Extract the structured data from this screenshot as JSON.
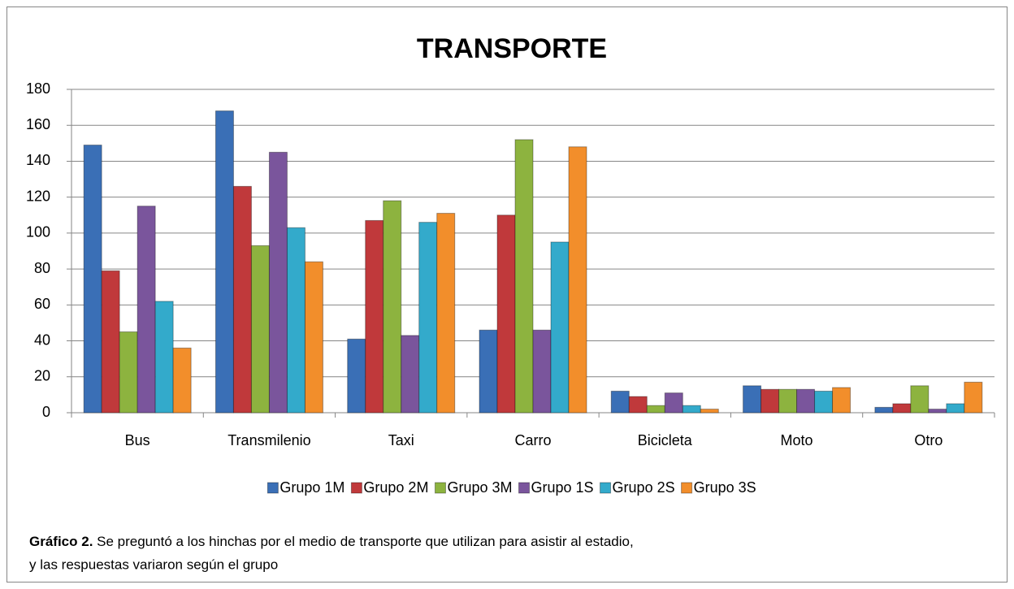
{
  "chart_data": {
    "type": "bar",
    "title": "TRANSPORTE",
    "categories": [
      "Bus",
      "Transmilenio",
      "Taxi",
      "Carro",
      "Bicicleta",
      "Moto",
      "Otro"
    ],
    "series": [
      {
        "name": "Grupo 1M",
        "color": "#3a6fb6",
        "values": [
          149,
          168,
          41,
          46,
          12,
          15,
          3
        ]
      },
      {
        "name": "Grupo 2M",
        "color": "#c0393b",
        "values": [
          79,
          126,
          107,
          110,
          9,
          13,
          5
        ]
      },
      {
        "name": "Grupo 3M",
        "color": "#8db33f",
        "values": [
          45,
          93,
          118,
          152,
          4,
          13,
          15
        ]
      },
      {
        "name": "Grupo 1S",
        "color": "#7a559c",
        "values": [
          115,
          145,
          43,
          46,
          11,
          13,
          2
        ]
      },
      {
        "name": "Grupo 2S",
        "color": "#33aacb",
        "values": [
          62,
          103,
          106,
          95,
          4,
          12,
          5
        ]
      },
      {
        "name": "Grupo 3S",
        "color": "#f28e2b",
        "values": [
          36,
          84,
          111,
          148,
          2,
          14,
          17
        ]
      }
    ],
    "ylim": [
      0,
      180
    ],
    "yticks": [
      0,
      20,
      40,
      60,
      80,
      100,
      120,
      140,
      160,
      180
    ],
    "grid": true,
    "legend": "bottom"
  },
  "caption": {
    "label": "Gráfico 2.",
    "line1": " Se preguntó  a los hinchas por el medio de transporte que utilizan para asistir al estadio,",
    "line2": "y las respuestas variaron según el grupo"
  }
}
